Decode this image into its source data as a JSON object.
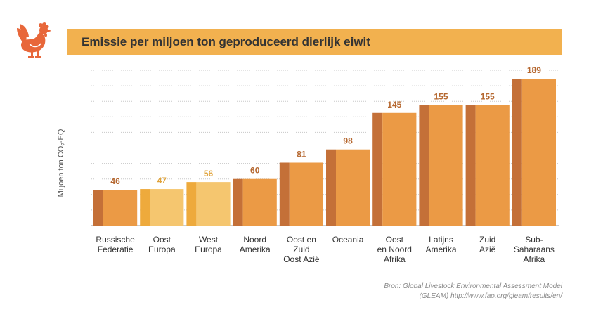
{
  "logo": {
    "icon": "rooster-icon",
    "color": "#e8673a"
  },
  "header": {
    "title": "Emissie per miljoen ton geproduceerd dierlijk eiwit"
  },
  "chart_data": {
    "type": "bar",
    "title": "Emissie per miljoen ton geproduceerd dierlijk eiwit",
    "ylabel_parts": [
      "Miljoen ton CO",
      "2",
      "-EQ"
    ],
    "ylim": [
      0,
      200
    ],
    "grid": true,
    "categories": [
      [
        "Russische",
        "Federatie"
      ],
      [
        "Oost",
        "Europa"
      ],
      [
        "West",
        "Europa"
      ],
      [
        "Noord",
        "Amerika"
      ],
      [
        "Oost en",
        "Zuid",
        "Oost Azië"
      ],
      [
        "Oceania"
      ],
      [
        "Oost",
        "en Noord",
        "Afrika"
      ],
      [
        "Latijns",
        "Amerika"
      ],
      [
        "Zuid",
        "Azië"
      ],
      [
        "Sub-",
        "Saharaans",
        "Afrika"
      ]
    ],
    "values": [
      46,
      47,
      56,
      60,
      81,
      98,
      145,
      155,
      155,
      189
    ],
    "colors": {
      "default": {
        "front": "#eb9a45",
        "side": "#c47038",
        "label": "#b5672f"
      },
      "light": {
        "front": "#f5c66f",
        "side": "#eeaa3c",
        "label": "#e0a33a"
      }
    },
    "light_indices": [
      1,
      2
    ]
  },
  "source": {
    "line1": "Bron: Global Livestock Environmental Assessment Model",
    "line2": "(GLEAM) http://www.fao.org/gleam/results/en/"
  }
}
